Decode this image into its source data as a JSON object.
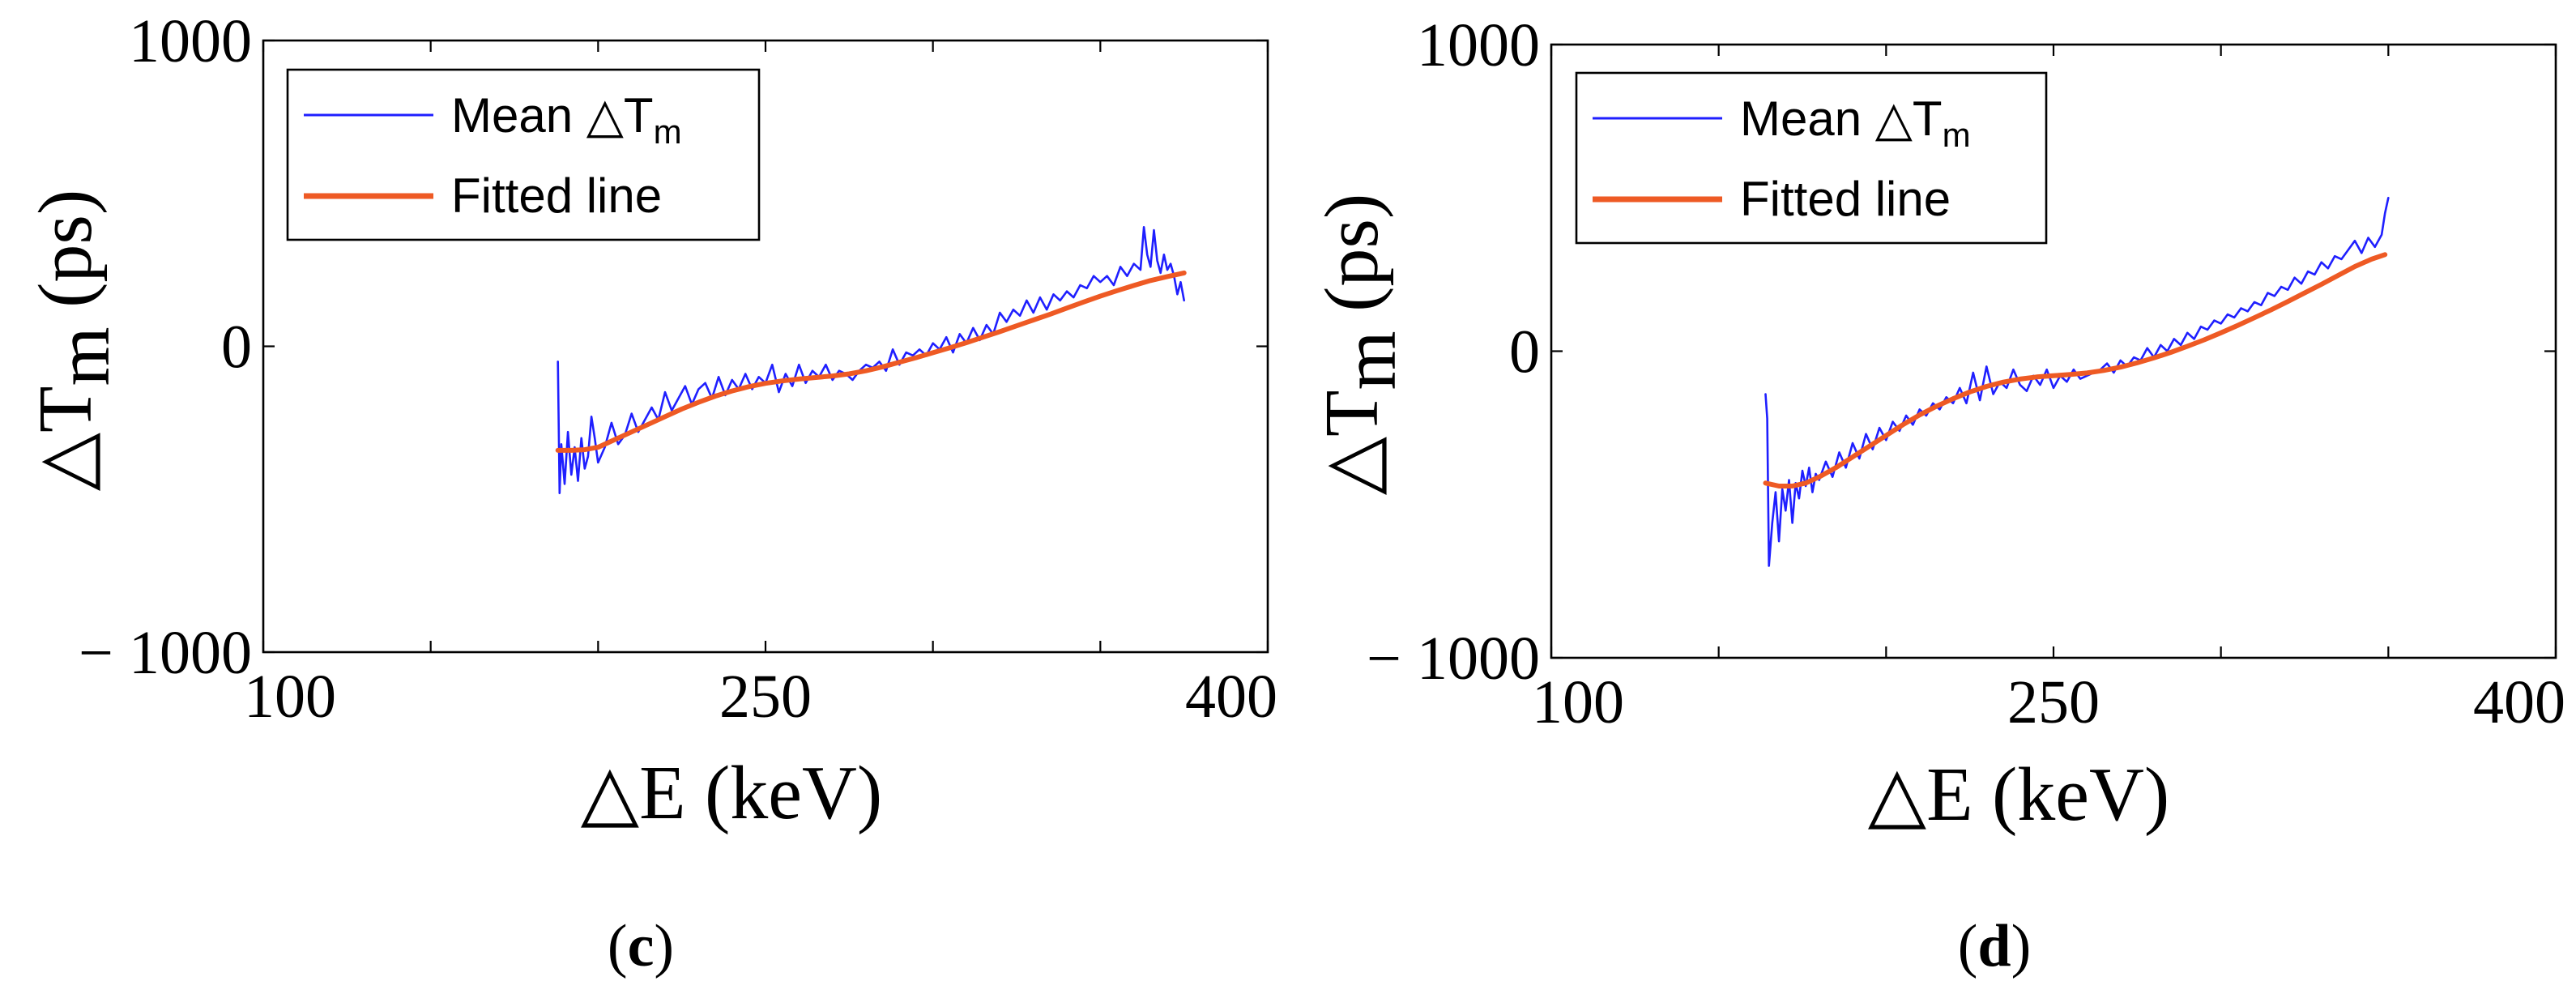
{
  "chart_data": [
    {
      "type": "line",
      "panel_label": "c",
      "xlabel": "△E (keV)",
      "ylabel_main": "△T",
      "ylabel_sub": "m",
      "ylabel_unit": " (ps)",
      "xlim": [
        100,
        400
      ],
      "ylim": [
        -1000,
        1000
      ],
      "xticks": [
        100,
        250,
        400
      ],
      "xtick_labels": [
        "100",
        "250",
        "400"
      ],
      "x_minor_ticks": [
        150,
        200,
        300,
        350
      ],
      "yticks": [
        1000,
        0,
        -1000
      ],
      "ytick_labels": [
        "1000",
        "0",
        "− 1000"
      ],
      "legend": {
        "position": "top-left",
        "entries": [
          {
            "label_main": "Mean △T",
            "label_sub": "m",
            "color": "#1f1fff"
          },
          {
            "label_main": "Fitted line",
            "label_sub": "",
            "color": "#ee5a24"
          }
        ]
      },
      "series": [
        {
          "name": "Mean △Tm",
          "color": "#1f1fff",
          "x": [
            188,
            188.5,
            189,
            190,
            191,
            192,
            193,
            194,
            195,
            196,
            197,
            198,
            199,
            200,
            202,
            204,
            206,
            208,
            210,
            212,
            214,
            216,
            218,
            220,
            222,
            224,
            226,
            228,
            230,
            232,
            234,
            236,
            238,
            240,
            242,
            244,
            246,
            248,
            250,
            252,
            254,
            256,
            258,
            260,
            262,
            264,
            266,
            268,
            270,
            272,
            274,
            276,
            278,
            280,
            282,
            284,
            286,
            288,
            290,
            292,
            294,
            296,
            298,
            300,
            302,
            304,
            306,
            308,
            310,
            312,
            314,
            316,
            318,
            320,
            322,
            324,
            326,
            328,
            330,
            332,
            334,
            336,
            338,
            340,
            342,
            344,
            346,
            348,
            350,
            352,
            354,
            356,
            358,
            360,
            362,
            363,
            364,
            365,
            366,
            367,
            368,
            369,
            370,
            371,
            372,
            373,
            374,
            375
          ],
          "y": [
            -50,
            -480,
            -320,
            -450,
            -280,
            -420,
            -330,
            -440,
            -300,
            -400,
            -360,
            -230,
            -300,
            -380,
            -330,
            -250,
            -320,
            -290,
            -220,
            -280,
            -240,
            -200,
            -240,
            -150,
            -210,
            -170,
            -130,
            -190,
            -140,
            -120,
            -170,
            -100,
            -160,
            -110,
            -140,
            -90,
            -140,
            -100,
            -120,
            -60,
            -150,
            -90,
            -130,
            -60,
            -120,
            -80,
            -100,
            -60,
            -110,
            -80,
            -90,
            -110,
            -80,
            -60,
            -70,
            -50,
            -80,
            -10,
            -60,
            -20,
            -30,
            -10,
            -30,
            10,
            -10,
            30,
            -20,
            40,
            10,
            60,
            20,
            70,
            40,
            110,
            80,
            120,
            100,
            150,
            110,
            160,
            120,
            170,
            150,
            180,
            160,
            200,
            190,
            230,
            210,
            230,
            200,
            260,
            230,
            270,
            250,
            390,
            300,
            260,
            380,
            280,
            240,
            300,
            250,
            270,
            230,
            170,
            210,
            150
          ]
        },
        {
          "name": "Fitted line",
          "color": "#ee5a24",
          "x": [
            188,
            192,
            196,
            200,
            205,
            210,
            215,
            220,
            225,
            230,
            235,
            240,
            245,
            250,
            255,
            260,
            265,
            270,
            275,
            280,
            285,
            290,
            295,
            300,
            305,
            310,
            315,
            320,
            325,
            330,
            335,
            340,
            345,
            350,
            355,
            360,
            365,
            370,
            375
          ],
          "y": [
            -340,
            -340,
            -338,
            -330,
            -305,
            -280,
            -255,
            -230,
            -205,
            -183,
            -163,
            -146,
            -132,
            -121,
            -113,
            -107,
            -102,
            -97,
            -90,
            -80,
            -67,
            -52,
            -37,
            -21,
            -5,
            12,
            30,
            48,
            67,
            86,
            105,
            125,
            145,
            164,
            182,
            199,
            215,
            228,
            240
          ]
        }
      ]
    },
    {
      "type": "line",
      "panel_label": "d",
      "xlabel": "△E (keV)",
      "ylabel_main": "△T",
      "ylabel_sub": "m",
      "ylabel_unit": " (ps)",
      "xlim": [
        100,
        400
      ],
      "ylim": [
        -1000,
        1000
      ],
      "xticks": [
        100,
        250,
        400
      ],
      "xtick_labels": [
        "100",
        "250",
        "400"
      ],
      "x_minor_ticks": [
        150,
        200,
        300,
        350
      ],
      "yticks": [
        1000,
        0,
        -1000
      ],
      "ytick_labels": [
        "1000",
        "0",
        "− 1000"
      ],
      "legend": {
        "position": "top-left",
        "entries": [
          {
            "label_main": "Mean △T",
            "label_sub": "m",
            "color": "#1f1fff"
          },
          {
            "label_main": "Fitted line",
            "label_sub": "",
            "color": "#ee5a24"
          }
        ]
      },
      "series": [
        {
          "name": "Mean △Tm",
          "color": "#1f1fff",
          "x": [
            164,
            164.5,
            165,
            166,
            167,
            168,
            169,
            170,
            171,
            172,
            173,
            174,
            175,
            176,
            177,
            178,
            179,
            180,
            182,
            184,
            186,
            188,
            190,
            192,
            194,
            196,
            198,
            200,
            202,
            204,
            206,
            208,
            210,
            212,
            214,
            216,
            218,
            220,
            222,
            224,
            226,
            228,
            230,
            232,
            234,
            236,
            238,
            240,
            242,
            244,
            246,
            248,
            250,
            252,
            254,
            256,
            258,
            260,
            262,
            264,
            266,
            268,
            270,
            272,
            274,
            276,
            278,
            280,
            282,
            284,
            286,
            288,
            290,
            292,
            294,
            296,
            298,
            300,
            302,
            304,
            306,
            308,
            310,
            312,
            314,
            316,
            318,
            320,
            322,
            324,
            326,
            328,
            330,
            332,
            334,
            336,
            338,
            340,
            342,
            344,
            346,
            348,
            349,
            350
          ],
          "y": [
            -140,
            -220,
            -700,
            -560,
            -460,
            -620,
            -450,
            -520,
            -420,
            -560,
            -430,
            -480,
            -390,
            -440,
            -380,
            -460,
            -400,
            -420,
            -360,
            -410,
            -330,
            -380,
            -300,
            -350,
            -270,
            -320,
            -250,
            -290,
            -230,
            -260,
            -210,
            -240,
            -190,
            -210,
            -170,
            -190,
            -150,
            -170,
            -120,
            -170,
            -70,
            -160,
            -50,
            -140,
            -100,
            -120,
            -60,
            -110,
            -130,
            -80,
            -110,
            -60,
            -120,
            -80,
            -100,
            -60,
            -90,
            -80,
            -70,
            -60,
            -40,
            -70,
            -30,
            -50,
            -20,
            -30,
            10,
            -20,
            20,
            0,
            40,
            20,
            60,
            40,
            80,
            70,
            100,
            90,
            120,
            110,
            140,
            130,
            160,
            150,
            190,
            180,
            210,
            200,
            240,
            220,
            260,
            250,
            290,
            270,
            310,
            300,
            330,
            360,
            320,
            370,
            340,
            380,
            450,
            500
          ]
        },
        {
          "name": "Fitted line",
          "color": "#ee5a24",
          "x": [
            164,
            168,
            172,
            176,
            180,
            185,
            190,
            195,
            200,
            205,
            210,
            215,
            220,
            225,
            230,
            235,
            240,
            245,
            250,
            255,
            260,
            265,
            270,
            275,
            280,
            285,
            290,
            295,
            300,
            305,
            310,
            315,
            320,
            325,
            330,
            335,
            340,
            345,
            349
          ],
          "y": [
            -430,
            -440,
            -440,
            -430,
            -410,
            -380,
            -345,
            -310,
            -275,
            -240,
            -208,
            -180,
            -155,
            -133,
            -115,
            -101,
            -91,
            -84,
            -80,
            -76,
            -71,
            -63,
            -52,
            -38,
            -22,
            -4,
            16,
            37,
            60,
            84,
            109,
            135,
            162,
            190,
            218,
            247,
            276,
            300,
            315
          ]
        }
      ]
    }
  ]
}
